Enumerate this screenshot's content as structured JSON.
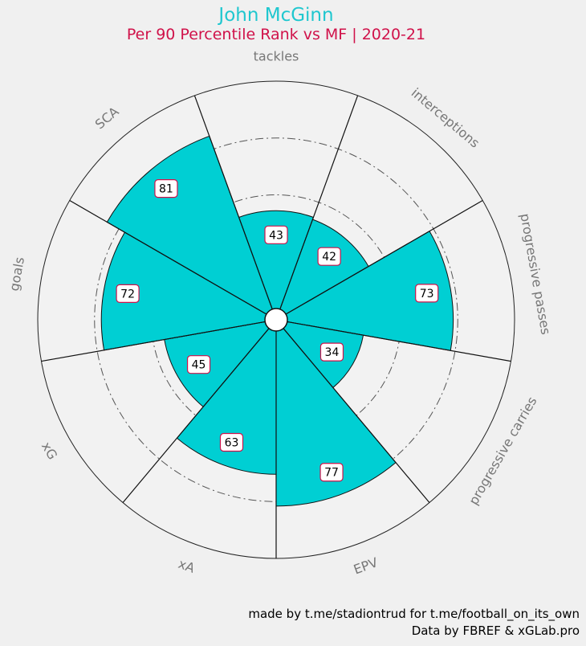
{
  "header": {
    "title": "John McGinn",
    "subtitle": "Per 90 Percentile Rank vs MF | 2020-21"
  },
  "colors": {
    "title": "#1fc7cf",
    "subtitle": "#d0124a",
    "fill": "#00cfd3",
    "badge_border": "#d0124a"
  },
  "chart_data": {
    "type": "radial-bar",
    "title": "John McGinn",
    "subtitle": "Per 90 Percentile Rank vs MF | 2020-21",
    "range": [
      0,
      100
    ],
    "categories": [
      "tackles",
      "interceptions",
      "progressive passes",
      "progressive carries",
      "EPV",
      "xA",
      "xG",
      "goals",
      "SCA"
    ],
    "values": [
      43,
      42,
      73,
      34,
      77,
      63,
      45,
      72,
      81
    ]
  },
  "footer": {
    "credit_line1": "made by t.me/stadiontrud for t.me/football_on_its_own",
    "credit_line2": "Data by FBREF & xGLab.pro"
  }
}
